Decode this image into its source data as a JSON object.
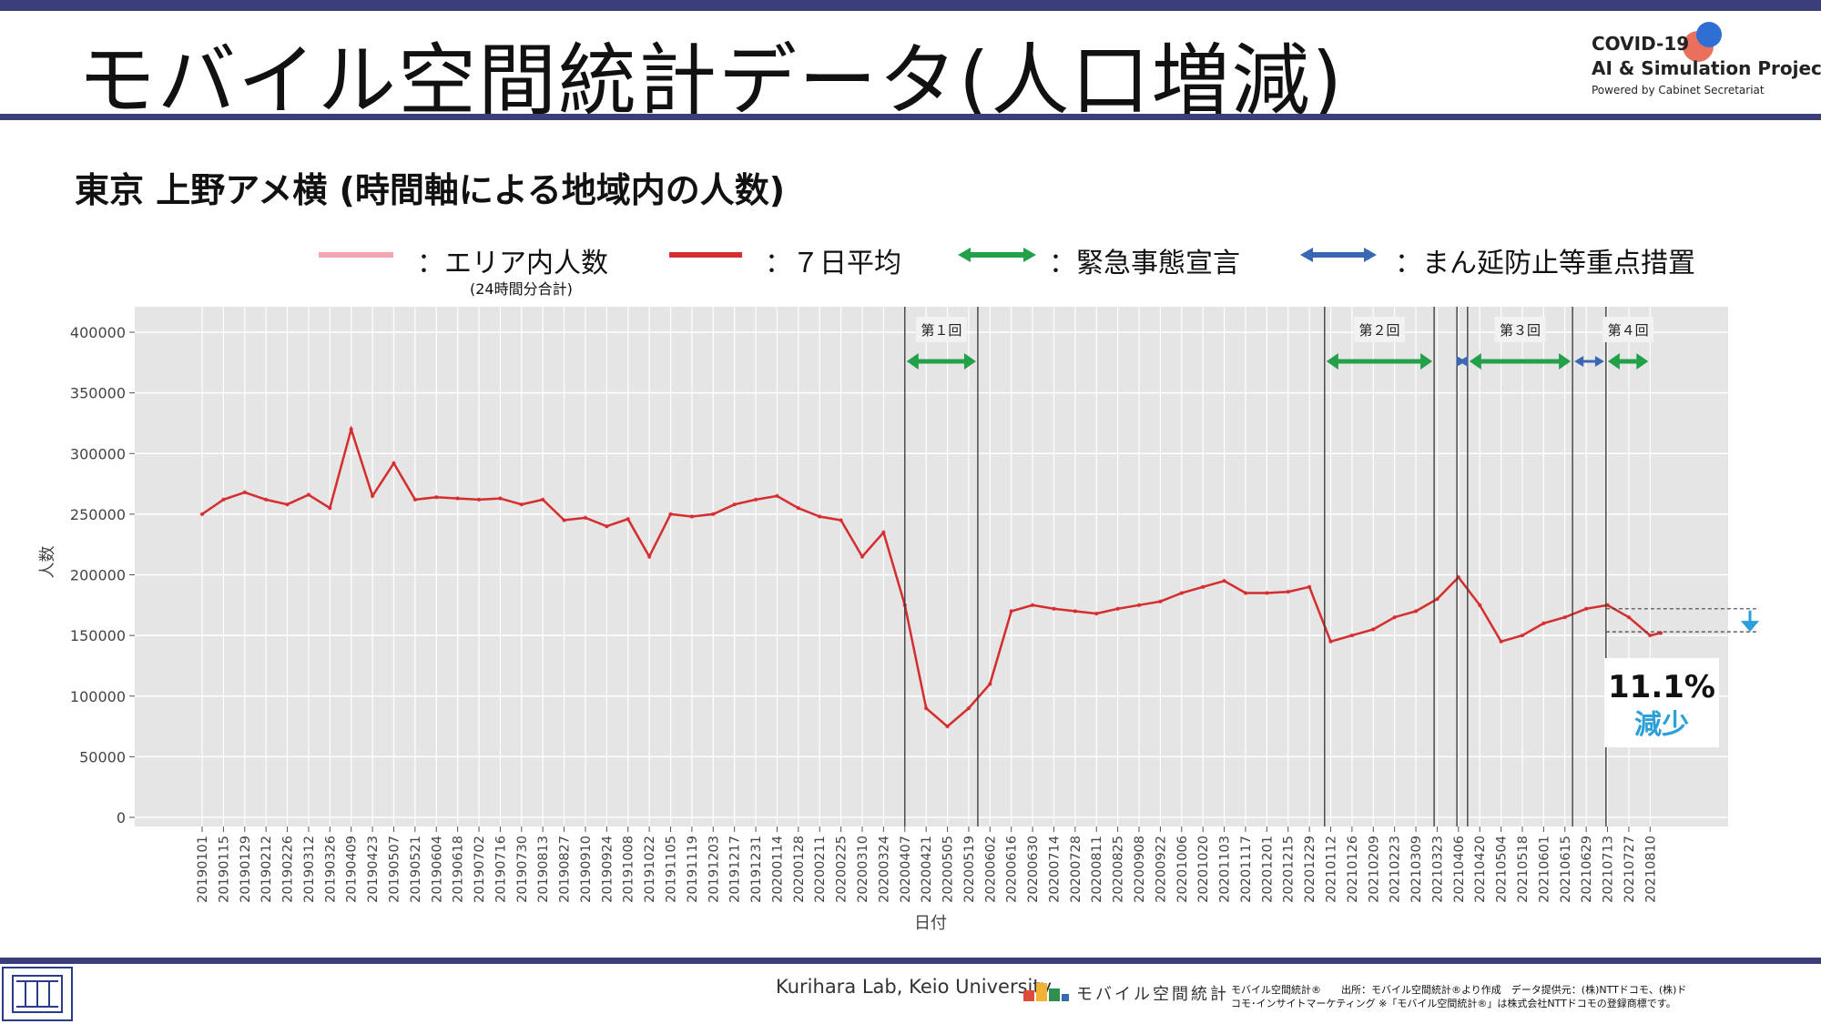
{
  "header": {
    "title": "モバイル空間統計データ(人口増減)",
    "logo_line1": "COVID-19",
    "logo_line2": "AI & Simulation Project",
    "logo_line3": "Powered by Cabinet Secretariat"
  },
  "subtitle": "東京 上野アメ横 (時間軸による地域内の人数)",
  "legend": {
    "daily_label": "：エリア内人数",
    "daily_note": "(24時間分合計)",
    "avg_label": "：７日平均",
    "emergency_label": "：緊急事態宣言",
    "priority_label": "：まん延防止等重点措置"
  },
  "footer": {
    "credit": "Kurihara Lab, Keio University",
    "mobile_logo": "モバイル空間統計",
    "source_line1": "モバイル空間統計®　　出所：モバイル空間統計®より作成　データ提供元：(株)NTTドコモ、(株)ド",
    "source_line2": "コモ･インサイトマーケティング ※「モバイル空間統計®」は株式会社NTTドコモの登録商標です。"
  },
  "colors": {
    "daily": "#f4a6b6",
    "avg": "#d32f2f",
    "emergency": "#22a04a",
    "priority": "#3a67b3",
    "plot_bg": "#e5e5e5",
    "accent_blue": "#2a9fd8"
  },
  "chart_data": {
    "type": "line",
    "xlabel": "日付",
    "ylabel": "人数",
    "ylim": [
      0,
      400000
    ],
    "yticks": [
      0,
      50000,
      100000,
      150000,
      200000,
      250000,
      300000,
      350000,
      400000
    ],
    "xticks": [
      "20190101",
      "20190115",
      "20190129",
      "20190212",
      "20190226",
      "20190312",
      "20190326",
      "20190409",
      "20190423",
      "20190507",
      "20190521",
      "20190604",
      "20190618",
      "20190702",
      "20190716",
      "20190730",
      "20190813",
      "20190827",
      "20190910",
      "20190924",
      "20191008",
      "20191022",
      "20191105",
      "20191119",
      "20191203",
      "20191217",
      "20191231",
      "20200114",
      "20200128",
      "20200211",
      "20200225",
      "20200310",
      "20200324",
      "20200407",
      "20200421",
      "20200505",
      "20200519",
      "20200602",
      "20200616",
      "20200630",
      "20200714",
      "20200728",
      "20200811",
      "20200825",
      "20200908",
      "20200922",
      "20201006",
      "20201020",
      "20201103",
      "20201117",
      "20201201",
      "20201215",
      "20201229",
      "20210112",
      "20210126",
      "20210209",
      "20210223",
      "20210309",
      "20210323",
      "20210406",
      "20210420",
      "20210504",
      "20210518",
      "20210601",
      "20210615",
      "20210629",
      "20210713",
      "20210727",
      "20210810"
    ],
    "grid": true,
    "series": [
      {
        "name": "：エリア内人数",
        "kind": "daily",
        "x": [
          "20190101",
          "20190115",
          "20190129",
          "20190212",
          "20190226",
          "20190312",
          "20190326",
          "20190409",
          "20190423",
          "20190507",
          "20190521",
          "20190604",
          "20190618",
          "20190702",
          "20190716",
          "20190730",
          "20190813",
          "20190827",
          "20190910",
          "20190924",
          "20191008",
          "20191022",
          "20191105",
          "20191119",
          "20191203",
          "20191217",
          "20191231",
          "20200114",
          "20200128",
          "20200211",
          "20200225",
          "20200310",
          "20200324",
          "20200407",
          "20200421",
          "20200505",
          "20200519",
          "20200602",
          "20200616",
          "20200630",
          "20200714",
          "20200728",
          "20200811",
          "20200825",
          "20200908",
          "20200922",
          "20201006",
          "20201020",
          "20201103",
          "20201117",
          "20201201",
          "20201215",
          "20201229",
          "20210112",
          "20210126",
          "20210209",
          "20210223",
          "20210309",
          "20210323",
          "20210406",
          "20210420",
          "20210504",
          "20210518",
          "20210601",
          "20210615",
          "20210629",
          "20210713",
          "20210727",
          "20210810",
          "20210817"
        ],
        "values": [
          250000,
          262000,
          268000,
          262000,
          258000,
          266000,
          255000,
          320000,
          265000,
          292000,
          262000,
          264000,
          263000,
          262000,
          263000,
          258000,
          262000,
          245000,
          247000,
          240000,
          246000,
          215000,
          250000,
          248000,
          250000,
          258000,
          262000,
          265000,
          255000,
          248000,
          245000,
          215000,
          235000,
          175000,
          90000,
          75000,
          90000,
          110000,
          170000,
          175000,
          172000,
          170000,
          168000,
          172000,
          175000,
          178000,
          185000,
          190000,
          195000,
          185000,
          185000,
          186000,
          190000,
          145000,
          150000,
          155000,
          165000,
          170000,
          180000,
          198000,
          175000,
          145000,
          150000,
          160000,
          165000,
          172000,
          175000,
          165000,
          150000,
          152000
        ]
      },
      {
        "name": "：７日平均",
        "kind": "avg",
        "x": [
          "20190101",
          "20190115",
          "20190129",
          "20190212",
          "20190226",
          "20190312",
          "20190326",
          "20190409",
          "20190423",
          "20190507",
          "20190521",
          "20190604",
          "20190618",
          "20190702",
          "20190716",
          "20190730",
          "20190813",
          "20190827",
          "20190910",
          "20190924",
          "20191008",
          "20191022",
          "20191105",
          "20191119",
          "20191203",
          "20191217",
          "20191231",
          "20200114",
          "20200128",
          "20200211",
          "20200225",
          "20200310",
          "20200324",
          "20200407",
          "20200421",
          "20200505",
          "20200519",
          "20200602",
          "20200616",
          "20200630",
          "20200714",
          "20200728",
          "20200811",
          "20200825",
          "20200908",
          "20200922",
          "20201006",
          "20201020",
          "20201103",
          "20201117",
          "20201201",
          "20201215",
          "20201229",
          "20210112",
          "20210126",
          "20210209",
          "20210223",
          "20210309",
          "20210323",
          "20210406",
          "20210420",
          "20210504",
          "20210518",
          "20210601",
          "20210615",
          "20210629",
          "20210713",
          "20210727",
          "20210810",
          "20210817"
        ],
        "values": [
          250000,
          262000,
          268000,
          262000,
          258000,
          266000,
          255000,
          320000,
          265000,
          292000,
          262000,
          264000,
          263000,
          262000,
          263000,
          258000,
          262000,
          245000,
          247000,
          240000,
          246000,
          215000,
          250000,
          248000,
          250000,
          258000,
          262000,
          265000,
          255000,
          248000,
          245000,
          215000,
          235000,
          175000,
          90000,
          75000,
          90000,
          110000,
          170000,
          175000,
          172000,
          170000,
          168000,
          172000,
          175000,
          178000,
          185000,
          190000,
          195000,
          185000,
          185000,
          186000,
          190000,
          145000,
          150000,
          155000,
          165000,
          170000,
          180000,
          198000,
          175000,
          145000,
          150000,
          160000,
          165000,
          172000,
          175000,
          165000,
          150000,
          152000
        ]
      }
    ],
    "vlines": [
      "20200407",
      "20200525",
      "20210108",
      "20210321",
      "20210405",
      "20210412",
      "20210620",
      "20210712"
    ],
    "period_labels": [
      {
        "label": "第１回",
        "from": "20200407",
        "to": "20200525"
      },
      {
        "label": "第２回",
        "from": "20210108",
        "to": "20210321"
      },
      {
        "label": "第３回",
        "from": "20210412",
        "to": "20210620"
      },
      {
        "label": "第４回",
        "from": "20210712",
        "to": "20210810"
      }
    ],
    "arrows": [
      {
        "kind": "emergency",
        "from": "20200407",
        "to": "20200525"
      },
      {
        "kind": "emergency",
        "from": "20210108",
        "to": "20210321"
      },
      {
        "kind": "priority",
        "from": "20210405",
        "to": "20210412"
      },
      {
        "kind": "emergency",
        "from": "20210412",
        "to": "20210620"
      },
      {
        "kind": "priority",
        "from": "20210620",
        "to": "20210712"
      },
      {
        "kind": "emergency",
        "from": "20210712",
        "to": "20210810"
      }
    ],
    "reference_levels": [
      172000,
      153000
    ],
    "annotation": {
      "value": "11.1%",
      "label": "減少"
    }
  }
}
